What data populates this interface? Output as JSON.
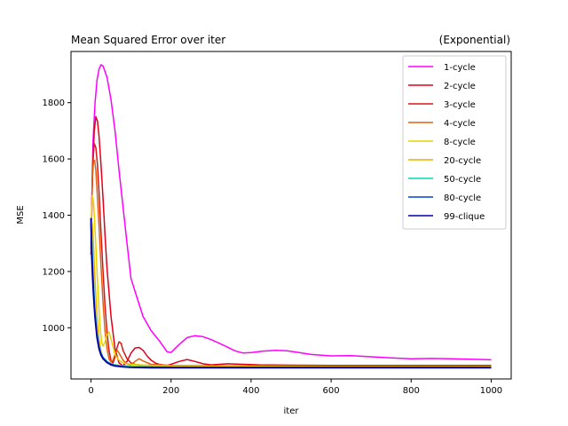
{
  "chart_data": {
    "type": "line",
    "title": "Mean Squared Error over iter",
    "title_right": "(Exponential)",
    "xlabel": "iter",
    "ylabel": "MSE",
    "xlim": [
      -50,
      1050
    ],
    "ylim": [
      818,
      1982
    ],
    "xticks": [
      0,
      200,
      400,
      600,
      800,
      1000
    ],
    "yticks": [
      1000,
      1200,
      1400,
      1600,
      1800
    ],
    "grid": false,
    "legend_position": "top-right",
    "series": [
      {
        "name": "1-cycle",
        "color": "#ff00ff",
        "x": [
          0,
          5,
          10,
          15,
          20,
          25,
          30,
          40,
          50,
          60,
          70,
          80,
          90,
          100,
          110,
          130,
          150,
          170,
          190,
          200,
          220,
          240,
          260,
          280,
          300,
          320,
          340,
          360,
          380,
          400,
          430,
          460,
          490,
          520,
          550,
          600,
          650,
          700,
          750,
          800,
          850,
          900,
          950,
          1000
        ],
        "y": [
          1300,
          1660,
          1800,
          1880,
          1920,
          1935,
          1930,
          1890,
          1810,
          1700,
          1560,
          1430,
          1300,
          1175,
          1130,
          1040,
          990,
          955,
          915,
          912,
          940,
          965,
          972,
          968,
          958,
          945,
          932,
          918,
          910,
          912,
          917,
          920,
          918,
          912,
          905,
          900,
          901,
          897,
          893,
          890,
          891,
          890,
          888,
          886
        ]
      },
      {
        "name": "2-cycle",
        "color": "#e0001a",
        "x": [
          0,
          4,
          8,
          12,
          16,
          20,
          25,
          30,
          35,
          40,
          50,
          60,
          70,
          80,
          90,
          100,
          110,
          120,
          130,
          140,
          150,
          160,
          170,
          180,
          190,
          200,
          220,
          240,
          260,
          280,
          300,
          340,
          380,
          420,
          500,
          600,
          700,
          800,
          900,
          1000
        ],
        "y": [
          1280,
          1550,
          1700,
          1750,
          1735,
          1680,
          1580,
          1460,
          1330,
          1210,
          1040,
          925,
          875,
          865,
          880,
          910,
          928,
          930,
          920,
          900,
          885,
          875,
          870,
          868,
          866,
          870,
          880,
          887,
          880,
          872,
          868,
          872,
          870,
          868,
          867,
          866,
          866,
          866,
          866,
          866
        ]
      },
      {
        "name": "3-cycle",
        "color": "#d41818",
        "x": [
          0,
          4,
          8,
          12,
          16,
          20,
          25,
          30,
          35,
          40,
          45,
          50,
          55,
          60,
          65,
          70,
          75,
          80,
          90,
          100,
          110,
          120,
          130,
          150,
          170,
          200,
          300,
          400,
          600,
          800,
          1000
        ],
        "y": [
          1260,
          1580,
          1655,
          1640,
          1580,
          1480,
          1340,
          1200,
          1080,
          985,
          920,
          882,
          875,
          895,
          930,
          950,
          945,
          920,
          890,
          875,
          870,
          868,
          866,
          867,
          866,
          865,
          864,
          864,
          864,
          864,
          864
        ]
      },
      {
        "name": "4-cycle",
        "color": "#e06010",
        "x": [
          0,
          3,
          6,
          9,
          12,
          15,
          20,
          25,
          30,
          35,
          40,
          45,
          50,
          55,
          60,
          65,
          70,
          80,
          90,
          100,
          110,
          120,
          130,
          150,
          200,
          300,
          400,
          600,
          800,
          1000
        ],
        "y": [
          1260,
          1520,
          1590,
          1595,
          1560,
          1490,
          1360,
          1220,
          1090,
          990,
          925,
          890,
          878,
          885,
          905,
          920,
          910,
          885,
          872,
          868,
          880,
          890,
          882,
          870,
          866,
          865,
          864,
          863,
          863,
          863
        ]
      },
      {
        "name": "8-cycle",
        "color": "#e8d000",
        "x": [
          0,
          3,
          6,
          9,
          12,
          15,
          18,
          21,
          24,
          27,
          30,
          35,
          40,
          45,
          50,
          60,
          70,
          80,
          100,
          150,
          200,
          300,
          400,
          600,
          800,
          1000
        ],
        "y": [
          1350,
          1470,
          1450,
          1380,
          1290,
          1200,
          1115,
          1040,
          980,
          945,
          935,
          950,
          975,
          985,
          960,
          905,
          885,
          875,
          870,
          866,
          864,
          863,
          863,
          862,
          862,
          862
        ]
      },
      {
        "name": "20-cycle",
        "color": "#e8b000",
        "x": [
          0,
          2,
          4,
          6,
          8,
          10,
          15,
          20,
          25,
          30,
          40,
          50,
          60,
          80,
          100,
          150,
          200,
          300,
          400,
          600,
          800,
          1000
        ],
        "y": [
          1340,
          1380,
          1360,
          1300,
          1230,
          1165,
          1040,
          960,
          915,
          895,
          880,
          872,
          868,
          865,
          864,
          863,
          862,
          862,
          861,
          861,
          861,
          861
        ]
      },
      {
        "name": "50-cycle",
        "color": "#00d8b0",
        "x": [
          0,
          2,
          4,
          6,
          8,
          10,
          15,
          20,
          25,
          30,
          40,
          50,
          60,
          80,
          100,
          150,
          200,
          300,
          400,
          600,
          800,
          1000
        ],
        "y": [
          1355,
          1320,
          1240,
          1170,
          1110,
          1060,
          980,
          935,
          910,
          895,
          880,
          872,
          868,
          864,
          862,
          861,
          860,
          860,
          860,
          860,
          860,
          860
        ]
      },
      {
        "name": "80-cycle",
        "color": "#0040d8",
        "x": [
          0,
          2,
          4,
          6,
          8,
          10,
          15,
          20,
          25,
          30,
          40,
          50,
          60,
          80,
          100,
          150,
          200,
          300,
          400,
          600,
          800,
          1000
        ],
        "y": [
          1370,
          1300,
          1220,
          1150,
          1095,
          1050,
          975,
          932,
          908,
          893,
          878,
          870,
          866,
          862,
          860,
          859,
          859,
          859,
          859,
          859,
          859,
          859
        ]
      },
      {
        "name": "99-clique",
        "color": "#0000a8",
        "x": [
          0,
          1,
          2,
          4,
          6,
          8,
          10,
          15,
          20,
          25,
          30,
          40,
          50,
          60,
          80,
          100,
          150,
          200,
          300,
          400,
          600,
          800,
          1000
        ],
        "y": [
          1390,
          1300,
          1250,
          1180,
          1120,
          1075,
          1035,
          965,
          925,
          903,
          890,
          876,
          868,
          864,
          861,
          859,
          858,
          858,
          858,
          858,
          858,
          858,
          858
        ]
      }
    ]
  }
}
